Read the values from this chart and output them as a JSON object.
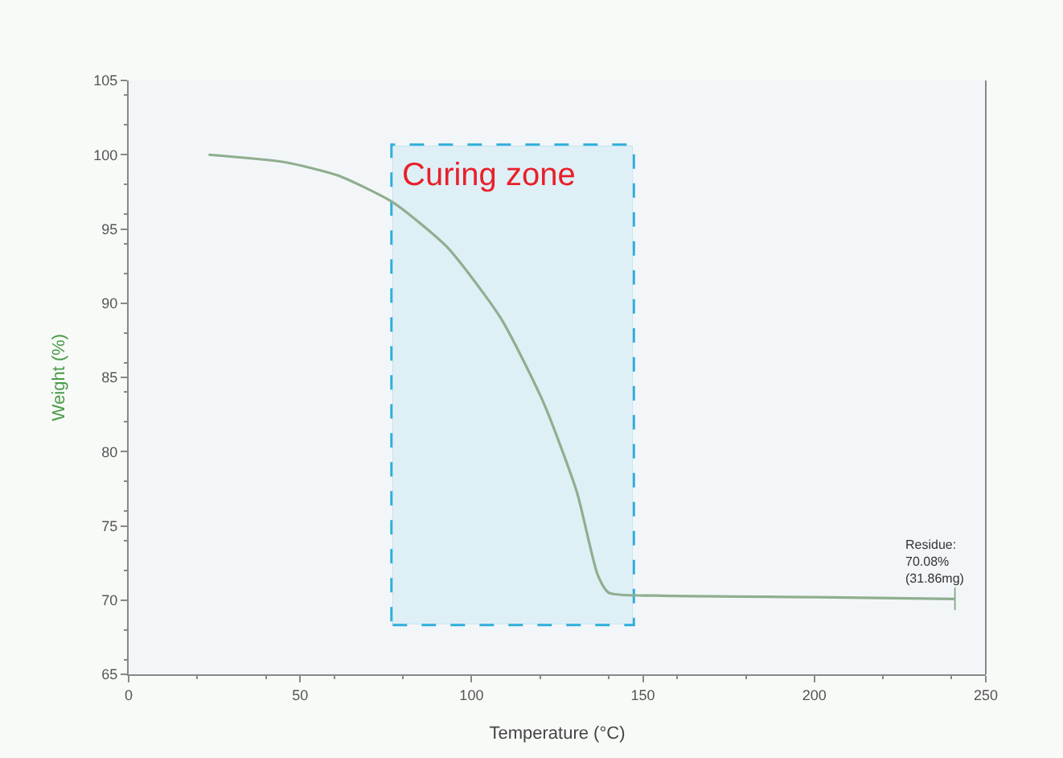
{
  "chart_data": {
    "type": "line",
    "xlabel": "Temperature (°C)",
    "ylabel": "Weight (%)",
    "xlim": [
      0,
      250
    ],
    "xticks": [
      0,
      50,
      100,
      150,
      200,
      250
    ],
    "ylim": [
      65,
      105
    ],
    "yticks": [
      65,
      70,
      75,
      80,
      85,
      90,
      95,
      100,
      105
    ],
    "grid": false,
    "marker": "none",
    "line_style": "solid",
    "series": [
      {
        "color": "#8fae8f",
        "x": [
          23.3,
          45.5,
          61,
          77,
          92.8,
          108.5,
          121,
          130.7,
          136.8,
          140,
          154,
          200,
          241
        ],
        "values": [
          100,
          99.5,
          98.6,
          96.8,
          93.8,
          89.0,
          83.3,
          77.3,
          71.7,
          70.5,
          70.3,
          70.2,
          70.08
        ]
      }
    ],
    "bands": [
      {
        "axis": "x",
        "from": 77,
        "to": 147,
        "label": "Curing zone",
        "color": "#1aa7d8"
      }
    ],
    "annotations": [
      {
        "text": "Residue:\n70.08%\n(31.86mg)",
        "x": 241,
        "y": 70.08
      }
    ]
  }
}
